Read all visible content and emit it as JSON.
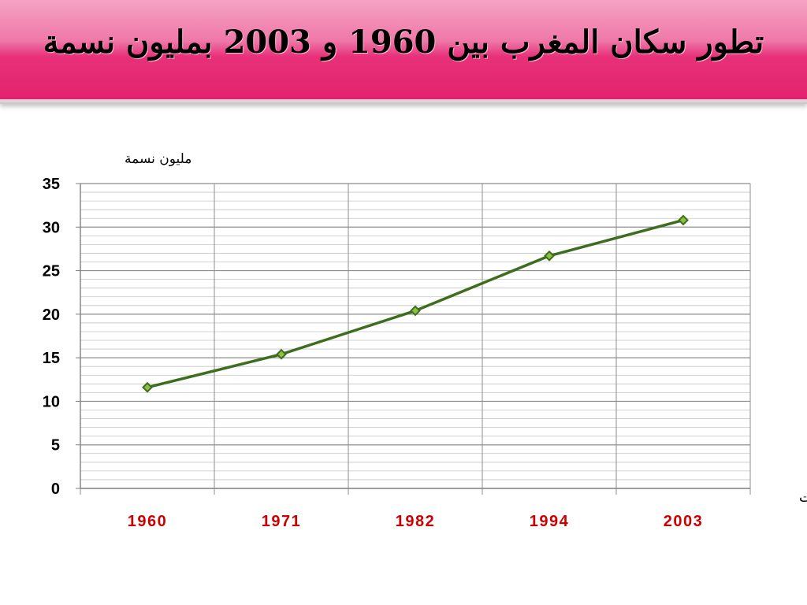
{
  "page": {
    "title": "تطور سكان المغرب بين 1960 و 2003 بمليون نسمة"
  },
  "chart_data": {
    "type": "line",
    "title": "تطور سكان المغرب بين 1960 و 2003 بمليون نسمة",
    "ylabel": "مليون نسمة",
    "xlabel": "السنوات",
    "categories": [
      "1960",
      "1971",
      "1982",
      "1994",
      "2003"
    ],
    "series": [
      {
        "values": [
          11.6,
          15.4,
          20.4,
          26.7,
          30.8
        ]
      }
    ],
    "ylim": [
      0,
      35
    ],
    "y_ticks": [
      0,
      5,
      10,
      15,
      20,
      25,
      30,
      35
    ],
    "grid": true,
    "colors": {
      "line": "#3d6e1f",
      "marker_fill": "#8fbf3f",
      "x_tick_labels": "#cc0000",
      "y_tick_labels": "#000000",
      "grid": "#aaaaaa"
    }
  }
}
